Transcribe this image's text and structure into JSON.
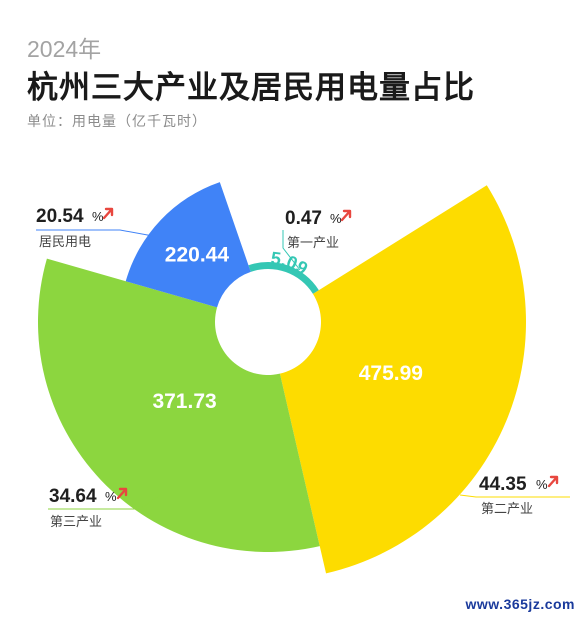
{
  "header": {
    "year": "2024年",
    "title": "杭州三大产业及居民用电量占比",
    "unit": "单位：用电量（亿千瓦时）"
  },
  "chart_data": {
    "type": "pie",
    "variant": "rose",
    "unit": "亿千瓦时",
    "center": [
      268,
      322
    ],
    "inner_radius": 53,
    "slices": [
      {
        "key": "first",
        "name": "第一产业",
        "value": 5.09,
        "percent": 0.47,
        "percent_text": "0.47",
        "value_text": "5.09",
        "color": "#34c7b4",
        "start_deg": -19,
        "end_deg": 58,
        "outer_radius": 60,
        "label_r": 58,
        "label_style": "teal"
      },
      {
        "key": "second",
        "name": "第二产业",
        "value": 475.99,
        "percent": 44.35,
        "percent_text": "44.35",
        "value_text": "475.99",
        "color": "#fddc00",
        "start_deg": 58,
        "end_deg": 167,
        "outer_radius": 258,
        "label_r": 133,
        "label_style": "white"
      },
      {
        "key": "third",
        "name": "第三产业",
        "value": 371.73,
        "percent": 34.64,
        "percent_text": "34.64",
        "value_text": "371.73",
        "color": "#8cd63f",
        "start_deg": 167,
        "end_deg": 286,
        "outer_radius": 230,
        "label_r": 115,
        "label_style": "white"
      },
      {
        "key": "resident",
        "name": "居民用电",
        "value": 220.44,
        "percent": 20.54,
        "percent_text": "20.54",
        "value_text": "220.44",
        "color": "#4083f7",
        "start_deg": 286,
        "end_deg": 341,
        "outer_radius": 148,
        "label_r": 98,
        "label_style": "white"
      }
    ],
    "trend": "up",
    "percent_sign": "%"
  },
  "watermark": "www.365jz.com"
}
